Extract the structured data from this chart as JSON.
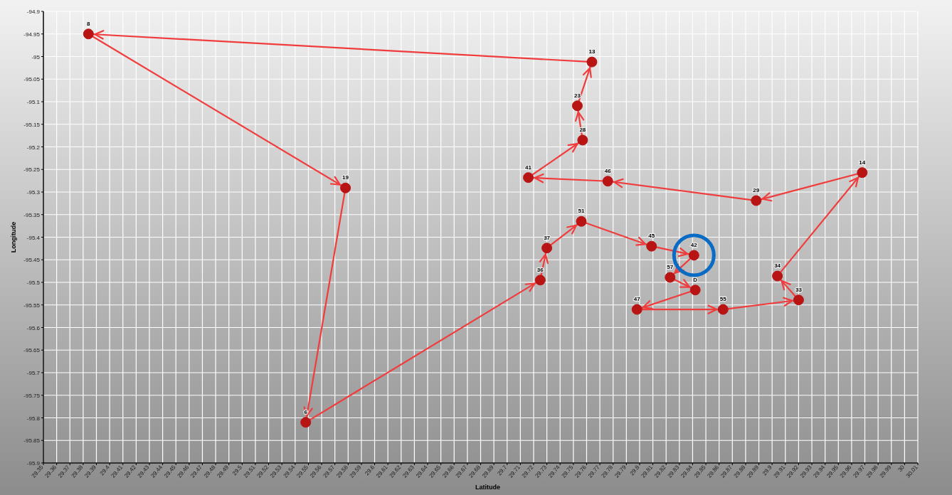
{
  "chart_data": {
    "type": "scatter",
    "xlabel": "Latitude",
    "ylabel": "Longitude",
    "xlim": [
      29.35,
      30.01
    ],
    "ylim": [
      -95.9,
      -94.9
    ],
    "xticks": [
      29.35,
      29.36,
      29.37,
      29.38,
      29.39,
      29.4,
      29.41,
      29.42,
      29.43,
      29.44,
      29.45,
      29.46,
      29.47,
      29.48,
      29.49,
      29.5,
      29.51,
      29.52,
      29.53,
      29.54,
      29.55,
      29.56,
      29.57,
      29.58,
      29.59,
      29.6,
      29.61,
      29.62,
      29.63,
      29.64,
      29.65,
      29.66,
      29.67,
      29.68,
      29.69,
      29.7,
      29.71,
      29.72,
      29.73,
      29.74,
      29.75,
      29.76,
      29.77,
      29.78,
      29.79,
      29.8,
      29.81,
      29.82,
      29.83,
      29.84,
      29.85,
      29.86,
      29.87,
      29.88,
      29.89,
      29.9,
      29.91,
      29.92,
      29.93,
      29.94,
      29.95,
      29.96,
      29.97,
      29.98,
      29.99,
      30,
      30.01
    ],
    "yticks": [
      -94.9,
      -94.95,
      -95,
      -95.05,
      -95.1,
      -95.15,
      -95.2,
      -95.25,
      -95.3,
      -95.35,
      -95.4,
      -95.45,
      -95.5,
      -95.55,
      -95.6,
      -95.65,
      -95.7,
      -95.75,
      -95.8,
      -95.85,
      -95.9
    ],
    "grid": true,
    "line_style": "solid",
    "series": [
      {
        "type": "line",
        "color": "#f03c3c",
        "x": [
          29.842,
          29.798
        ],
        "values": [
          -95.517,
          -95.56
        ]
      },
      {
        "type": "line",
        "color": "#f03c3c",
        "x": [
          29.798,
          29.863
        ],
        "values": [
          -95.56,
          -95.56
        ]
      },
      {
        "type": "line",
        "color": "#f03c3c",
        "x": [
          29.863,
          29.92
        ],
        "values": [
          -95.56,
          -95.539
        ]
      },
      {
        "type": "line",
        "color": "#f03c3c",
        "x": [
          29.92,
          29.904
        ],
        "values": [
          -95.539,
          -95.486
        ]
      },
      {
        "type": "line",
        "color": "#f03c3c",
        "x": [
          29.904,
          29.968
        ],
        "values": [
          -95.486,
          -95.257
        ]
      },
      {
        "type": "line",
        "color": "#f03c3c",
        "x": [
          29.968,
          29.888
        ],
        "values": [
          -95.257,
          -95.319
        ]
      },
      {
        "type": "line",
        "color": "#f03c3c",
        "x": [
          29.888,
          29.776
        ],
        "values": [
          -95.319,
          -95.276
        ]
      },
      {
        "type": "line",
        "color": "#f03c3c",
        "x": [
          29.776,
          29.716
        ],
        "values": [
          -95.276,
          -95.268
        ]
      },
      {
        "type": "line",
        "color": "#f03c3c",
        "x": [
          29.716,
          29.757
        ],
        "values": [
          -95.268,
          -95.185
        ]
      },
      {
        "type": "line",
        "color": "#f03c3c",
        "x": [
          29.757,
          29.753
        ],
        "values": [
          -95.185,
          -95.109
        ]
      },
      {
        "type": "line",
        "color": "#f03c3c",
        "x": [
          29.753,
          29.764
        ],
        "values": [
          -95.109,
          -95.012
        ]
      },
      {
        "type": "line",
        "color": "#f03c3c",
        "x": [
          29.764,
          29.384
        ],
        "values": [
          -95.012,
          -94.95
        ]
      },
      {
        "type": "line",
        "color": "#f03c3c",
        "x": [
          29.384,
          29.578
        ],
        "values": [
          -94.95,
          -95.291
        ]
      },
      {
        "type": "line",
        "color": "#f03c3c",
        "x": [
          29.578,
          29.548
        ],
        "values": [
          -95.291,
          -95.81
        ]
      },
      {
        "type": "line",
        "color": "#f03c3c",
        "x": [
          29.548,
          29.725
        ],
        "values": [
          -95.81,
          -95.495
        ]
      },
      {
        "type": "line",
        "color": "#f03c3c",
        "x": [
          29.725,
          29.73
        ],
        "values": [
          -95.495,
          -95.424
        ]
      },
      {
        "type": "line",
        "color": "#f03c3c",
        "x": [
          29.73,
          29.756
        ],
        "values": [
          -95.424,
          -95.365
        ]
      },
      {
        "type": "line",
        "color": "#f03c3c",
        "x": [
          29.756,
          29.809
        ],
        "values": [
          -95.365,
          -95.42
        ]
      },
      {
        "type": "line",
        "color": "#f03c3c",
        "x": [
          29.809,
          29.841
        ],
        "values": [
          -95.42,
          -95.44
        ]
      },
      {
        "type": "line",
        "color": "#f03c3c",
        "x": [
          29.841,
          29.823
        ],
        "values": [
          -95.44,
          -95.489
        ]
      },
      {
        "type": "line",
        "color": "#f03c3c",
        "x": [
          29.823,
          29.842
        ],
        "values": [
          -95.489,
          -95.517
        ]
      },
      {
        "color": "#b81414",
        "marker": "circle",
        "x": [
          29.842,
          29.798,
          29.863,
          29.92,
          29.904,
          29.968,
          29.888,
          29.776,
          29.716,
          29.757,
          29.753,
          29.764,
          29.384,
          29.578,
          29.548,
          29.725,
          29.73,
          29.756,
          29.809,
          29.841,
          29.823
        ],
        "values": [
          -95.517,
          -95.56,
          -95.56,
          -95.539,
          -95.486,
          -95.257,
          -95.319,
          -95.276,
          -95.268,
          -95.185,
          -95.109,
          -95.012,
          -94.95,
          -95.291,
          -95.81,
          -95.495,
          -95.424,
          -95.365,
          -95.42,
          -95.44,
          -95.489
        ]
      }
    ],
    "annotations": [
      {
        "text": "D",
        "x": 29.842,
        "y": -95.517
      },
      {
        "text": "47",
        "x": 29.798,
        "y": -95.56
      },
      {
        "text": "55",
        "x": 29.863,
        "y": -95.56
      },
      {
        "text": "33",
        "x": 29.92,
        "y": -95.539
      },
      {
        "text": "34",
        "x": 29.904,
        "y": -95.486
      },
      {
        "text": "14",
        "x": 29.968,
        "y": -95.257
      },
      {
        "text": "29",
        "x": 29.888,
        "y": -95.319
      },
      {
        "text": "46",
        "x": 29.776,
        "y": -95.276
      },
      {
        "text": "41",
        "x": 29.716,
        "y": -95.268
      },
      {
        "text": "28",
        "x": 29.757,
        "y": -95.185
      },
      {
        "text": "23",
        "x": 29.753,
        "y": -95.109
      },
      {
        "text": "13",
        "x": 29.764,
        "y": -95.012
      },
      {
        "text": "8",
        "x": 29.384,
        "y": -94.95
      },
      {
        "text": "19",
        "x": 29.578,
        "y": -95.291
      },
      {
        "text": "6",
        "x": 29.548,
        "y": -95.81
      },
      {
        "text": "36",
        "x": 29.725,
        "y": -95.495
      },
      {
        "text": "37",
        "x": 29.73,
        "y": -95.424
      },
      {
        "text": "51",
        "x": 29.756,
        "y": -95.365
      },
      {
        "text": "45",
        "x": 29.809,
        "y": -95.42
      },
      {
        "text": "42",
        "x": 29.841,
        "y": -95.44
      },
      {
        "text": "57",
        "x": 29.823,
        "y": -95.489
      }
    ]
  }
}
